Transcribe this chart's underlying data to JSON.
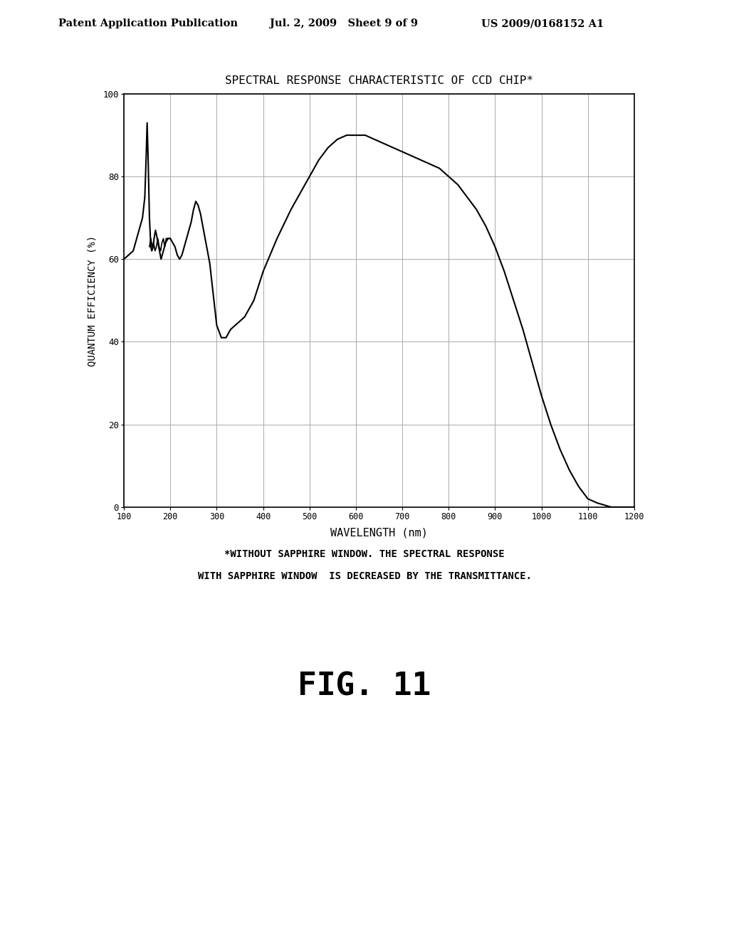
{
  "title": "SPECTRAL RESPONSE CHARACTERISTIC OF CCD CHIP*",
  "xlabel": "WAVELENGTH (nm)",
  "ylabel": "QUANTUM EFFICIENCY (%)",
  "xlim": [
    100,
    1200
  ],
  "ylim": [
    0,
    100
  ],
  "xticks": [
    100,
    200,
    300,
    400,
    500,
    600,
    700,
    800,
    900,
    1000,
    1100,
    1200
  ],
  "yticks": [
    0,
    20,
    40,
    60,
    80,
    100
  ],
  "header_left": "Patent Application Publication",
  "header_center": "Jul. 2, 2009   Sheet 9 of 9",
  "header_right": "US 2009/0168152 A1",
  "footnote_line1": "*WITHOUT SAPPHIRE WINDOW. THE SPECTRAL RESPONSE",
  "footnote_line2": "WITH SAPPHIRE WINDOW  IS DECREASED BY THE TRANSMITTANCE.",
  "fig_label": "FIG. 11",
  "background_color": "#ffffff",
  "line_color": "#000000",
  "grid_color": "#aaaaaa"
}
